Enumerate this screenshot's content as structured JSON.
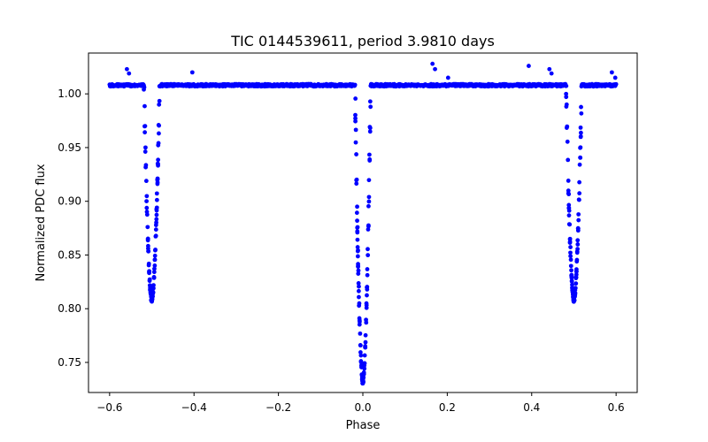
{
  "chart_data": {
    "type": "scatter",
    "title": "TIC 0144539611, period 3.9810 days",
    "xlabel": "Phase",
    "ylabel": "Normalized PDC flux",
    "xlim": [
      -0.65,
      0.65
    ],
    "ylim": [
      0.722,
      1.038
    ],
    "xticks": [
      -0.6,
      -0.4,
      -0.2,
      0.0,
      0.2,
      0.4,
      0.6
    ],
    "xtick_labels": [
      "−0.6",
      "−0.4",
      "−0.2",
      "0.0",
      "0.2",
      "0.4",
      "0.6"
    ],
    "yticks": [
      0.75,
      0.8,
      0.85,
      0.9,
      0.95,
      1.0
    ],
    "ytick_labels": [
      "0.75",
      "0.80",
      "0.85",
      "0.90",
      "0.95",
      "1.00"
    ],
    "grid": false,
    "marker_color": "#0000ff",
    "baseline_flux": 1.008,
    "phase_range": [
      -0.6,
      0.6
    ],
    "eclipses": [
      {
        "center_phase": -0.5,
        "min_flux": 0.808
      },
      {
        "center_phase": 0.0,
        "min_flux": 0.732
      },
      {
        "center_phase": 0.5,
        "min_flux": 0.808
      }
    ],
    "outliers": [
      {
        "x": -0.559,
        "y": 1.023
      },
      {
        "x": -0.554,
        "y": 1.019
      },
      {
        "x": -0.404,
        "y": 1.02
      },
      {
        "x": 0.165,
        "y": 1.028
      },
      {
        "x": 0.171,
        "y": 1.023
      },
      {
        "x": 0.202,
        "y": 1.015
      },
      {
        "x": 0.393,
        "y": 1.026
      },
      {
        "x": 0.442,
        "y": 1.023
      },
      {
        "x": 0.447,
        "y": 1.019
      },
      {
        "x": 0.59,
        "y": 1.02
      },
      {
        "x": 0.598,
        "y": 1.015
      }
    ]
  }
}
